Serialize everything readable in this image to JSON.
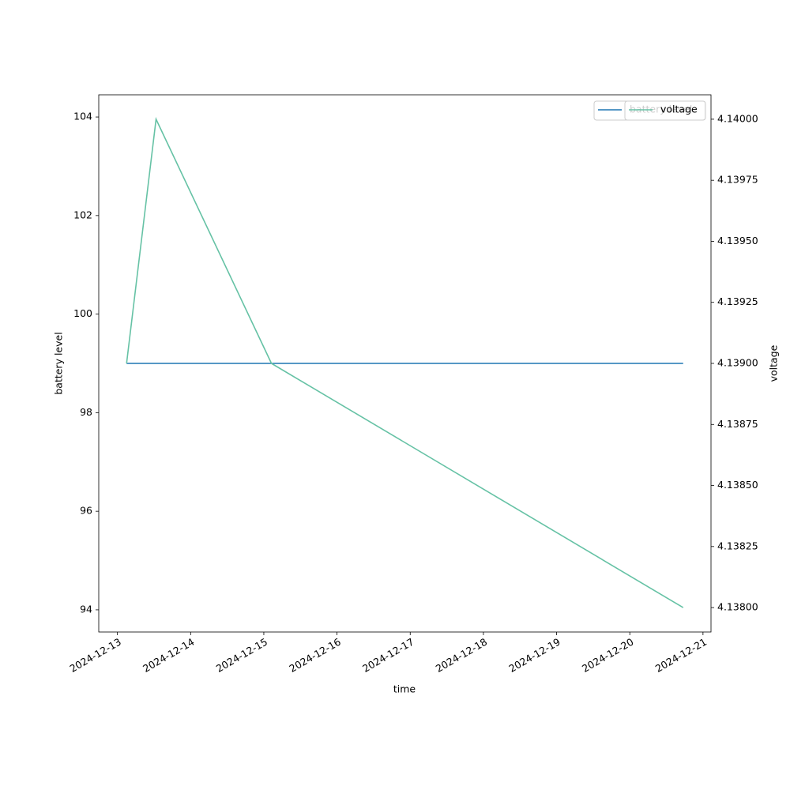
{
  "chart_data": {
    "type": "line",
    "x_label": "time",
    "y_label": "battery level",
    "y2_label": "voltage",
    "x": [
      "2024-12-13 03:00",
      "2024-12-13 12:40",
      "2024-12-15 02:30",
      "2024-12-20 17:30"
    ],
    "xticks": [
      "2024-12-13",
      "2024-12-14",
      "2024-12-15",
      "2024-12-16",
      "2024-12-17",
      "2024-12-18",
      "2024-12-19",
      "2024-12-20",
      "2024-12-21"
    ],
    "ylim": [
      93.55,
      104.45
    ],
    "yticks": [
      94,
      96,
      98,
      100,
      102,
      104
    ],
    "y2lim": [
      4.1379,
      4.1401
    ],
    "y2ticks": [
      {
        "value": 4.138,
        "label": "4.13800"
      },
      {
        "value": 4.13825,
        "label": "4.13825"
      },
      {
        "value": 4.1385,
        "label": "4.13850"
      },
      {
        "value": 4.13875,
        "label": "4.13875"
      },
      {
        "value": 4.139,
        "label": "4.13900"
      },
      {
        "value": 4.13925,
        "label": "4.13925"
      },
      {
        "value": 4.1395,
        "label": "4.13950"
      },
      {
        "value": 4.13975,
        "label": "4.13975"
      },
      {
        "value": 4.14,
        "label": "4.14000"
      }
    ],
    "legend": "upper right",
    "series": [
      {
        "name": "battery level",
        "color": "#1f77b4",
        "values": [
          99,
          99,
          99,
          99
        ]
      },
      {
        "name": "voltage",
        "color": "#66c2a5",
        "axis": "y2",
        "values": [
          4.139,
          4.14,
          4.139,
          4.138
        ]
      }
    ]
  }
}
